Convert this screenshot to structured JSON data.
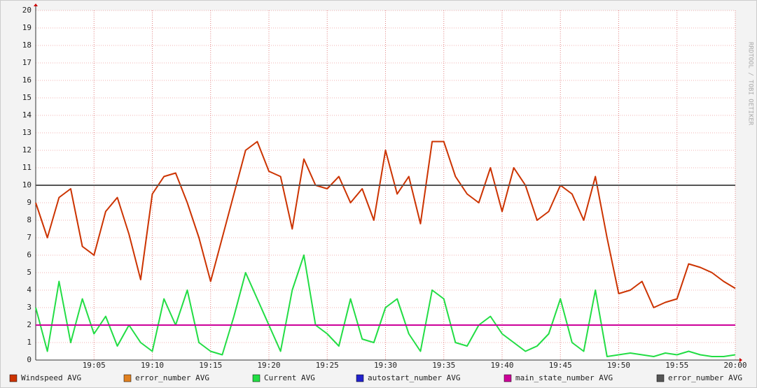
{
  "chart_data": {
    "type": "line",
    "watermark": "RRDTOOL / TOBI OETIKER",
    "x": [
      0,
      1,
      2,
      3,
      4,
      5,
      6,
      7,
      8,
      9,
      10,
      11,
      12,
      13,
      14,
      15,
      16,
      17,
      18,
      19,
      20,
      21,
      22,
      23,
      24,
      25,
      26,
      27,
      28,
      29,
      30,
      31,
      32,
      33,
      34,
      35,
      36,
      37,
      38,
      39,
      40,
      41,
      42,
      43,
      44,
      45,
      46,
      47,
      48,
      49,
      50,
      51,
      52,
      53,
      54,
      55,
      56,
      57,
      58,
      59,
      60
    ],
    "xlim": [
      0,
      60
    ],
    "xticks": [
      {
        "value": 5,
        "label": "19:05"
      },
      {
        "value": 10,
        "label": "19:10"
      },
      {
        "value": 15,
        "label": "19:15"
      },
      {
        "value": 20,
        "label": "19:20"
      },
      {
        "value": 25,
        "label": "19:25"
      },
      {
        "value": 30,
        "label": "19:30"
      },
      {
        "value": 35,
        "label": "19:35"
      },
      {
        "value": 40,
        "label": "19:40"
      },
      {
        "value": 45,
        "label": "19:45"
      },
      {
        "value": 50,
        "label": "19:50"
      },
      {
        "value": 55,
        "label": "19:55"
      },
      {
        "value": 60,
        "label": "20:00"
      }
    ],
    "ylim": [
      0,
      20
    ],
    "yticks": [
      0,
      1,
      2,
      3,
      4,
      5,
      6,
      7,
      8,
      9,
      10,
      11,
      12,
      13,
      14,
      15,
      16,
      17,
      18,
      19,
      20
    ],
    "grid": true,
    "series": [
      {
        "name": "Windspeed AVG",
        "color": "#cc3300",
        "values": [
          9.0,
          7.0,
          9.3,
          9.8,
          6.5,
          6.0,
          8.5,
          9.3,
          7.2,
          4.6,
          9.5,
          10.5,
          10.7,
          9.0,
          7.0,
          4.5,
          7.0,
          9.5,
          12.0,
          12.5,
          10.8,
          10.5,
          7.5,
          11.5,
          10.0,
          9.8,
          10.5,
          9.0,
          9.8,
          8.0,
          12.0,
          9.5,
          10.5,
          7.8,
          12.5,
          12.5,
          10.5,
          9.5,
          9.0,
          11.0,
          8.5,
          11.0,
          10.0,
          8.0,
          8.5,
          10.0,
          9.5,
          8.0,
          10.5,
          7.0,
          3.8,
          4.0,
          4.5,
          3.0,
          3.3,
          3.5,
          5.5,
          5.3,
          5.0,
          4.5,
          4.1
        ]
      },
      {
        "name": "error_number AVG",
        "color": "#e08020",
        "values": [
          null,
          null,
          null,
          null,
          null,
          null,
          null,
          null,
          null,
          null,
          null,
          null,
          null,
          null,
          null,
          null,
          null,
          null,
          null,
          null,
          null,
          null,
          null,
          null,
          null,
          null,
          null,
          null,
          null,
          null,
          null,
          null,
          null,
          null,
          null,
          null,
          null,
          null,
          null,
          null,
          null,
          null,
          null,
          null,
          null,
          null,
          null,
          null,
          null,
          null,
          null,
          null,
          null,
          null,
          null,
          null,
          null,
          null,
          null,
          null,
          null
        ]
      },
      {
        "name": "Current AVG",
        "color": "#22dd44",
        "values": [
          3.0,
          0.5,
          4.5,
          1.0,
          3.5,
          1.5,
          2.5,
          0.8,
          2.0,
          1.0,
          0.5,
          3.5,
          2.0,
          4.0,
          1.0,
          0.5,
          0.3,
          2.5,
          5.0,
          3.5,
          2.0,
          0.5,
          4.0,
          6.0,
          2.0,
          1.5,
          0.8,
          3.5,
          1.2,
          1.0,
          3.0,
          3.5,
          1.5,
          0.5,
          4.0,
          3.5,
          1.0,
          0.8,
          2.0,
          2.5,
          1.5,
          1.0,
          0.5,
          0.8,
          1.5,
          3.5,
          1.0,
          0.5,
          4.0,
          0.2,
          0.3,
          0.4,
          0.3,
          0.2,
          0.4,
          0.3,
          0.5,
          0.3,
          0.2,
          0.2,
          0.3
        ]
      },
      {
        "name": "autostart_number AVG",
        "color": "#2222cc",
        "values": [
          null,
          null,
          null,
          null,
          null,
          null,
          null,
          null,
          null,
          null,
          null,
          null,
          null,
          null,
          null,
          null,
          null,
          null,
          null,
          null,
          null,
          null,
          null,
          null,
          null,
          null,
          null,
          null,
          null,
          null,
          null,
          null,
          null,
          null,
          null,
          null,
          null,
          null,
          null,
          null,
          null,
          null,
          null,
          null,
          null,
          null,
          null,
          null,
          null,
          null,
          null,
          null,
          null,
          null,
          null,
          null,
          null,
          null,
          null,
          null,
          null
        ]
      },
      {
        "name": "main_state_number AVG",
        "color": "#cc0099",
        "values": [
          2,
          2,
          2,
          2,
          2,
          2,
          2,
          2,
          2,
          2,
          2,
          2,
          2,
          2,
          2,
          2,
          2,
          2,
          2,
          2,
          2,
          2,
          2,
          2,
          2,
          2,
          2,
          2,
          2,
          2,
          2,
          2,
          2,
          2,
          2,
          2,
          2,
          2,
          2,
          2,
          2,
          2,
          2,
          2,
          2,
          2,
          2,
          2,
          2,
          2,
          2,
          2,
          2,
          2,
          2,
          2,
          2,
          2,
          2,
          2,
          2
        ]
      },
      {
        "name": "error_number AVG",
        "color": "#555555",
        "values": [
          10,
          10,
          10,
          10,
          10,
          10,
          10,
          10,
          10,
          10,
          10,
          10,
          10,
          10,
          10,
          10,
          10,
          10,
          10,
          10,
          10,
          10,
          10,
          10,
          10,
          10,
          10,
          10,
          10,
          10,
          10,
          10,
          10,
          10,
          10,
          10,
          10,
          10,
          10,
          10,
          10,
          10,
          10,
          10,
          10,
          10,
          10,
          10,
          10,
          10,
          10,
          10,
          10,
          10,
          10,
          10,
          10,
          10,
          10,
          10,
          10
        ]
      }
    ]
  }
}
